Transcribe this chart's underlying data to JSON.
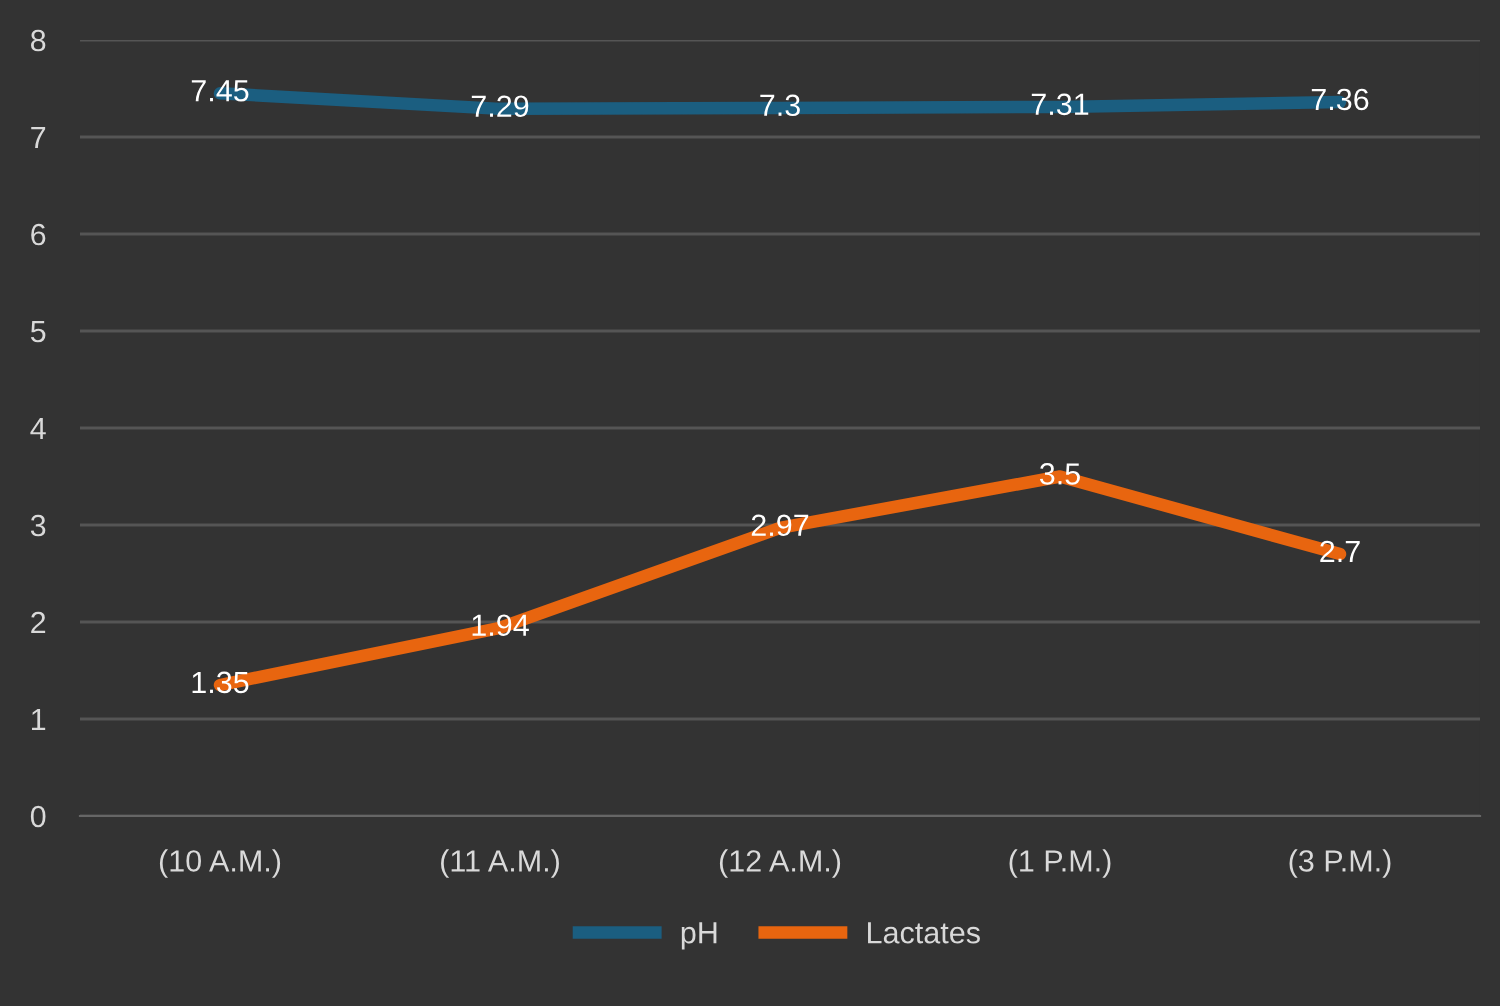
{
  "chart_data": {
    "type": "line",
    "categories": [
      "(10 A.M.)",
      "(11 A.M.)",
      "(12 A.M.)",
      "(1 P.M.)",
      "(3 P.M.)"
    ],
    "series": [
      {
        "name": "pH",
        "color": "#1b5e80",
        "values": [
          7.45,
          7.29,
          7.3,
          7.31,
          7.36
        ]
      },
      {
        "name": "Lactates",
        "color": "#e8650f",
        "values": [
          1.35,
          1.94,
          2.97,
          3.5,
          2.7
        ]
      }
    ],
    "ylim": [
      0,
      8
    ],
    "yticks": [
      0,
      1,
      2,
      3,
      4,
      5,
      6,
      7,
      8
    ],
    "grid": "y",
    "legend": "bottom",
    "data_labels": true,
    "marker": "none",
    "line_style": "solid"
  }
}
